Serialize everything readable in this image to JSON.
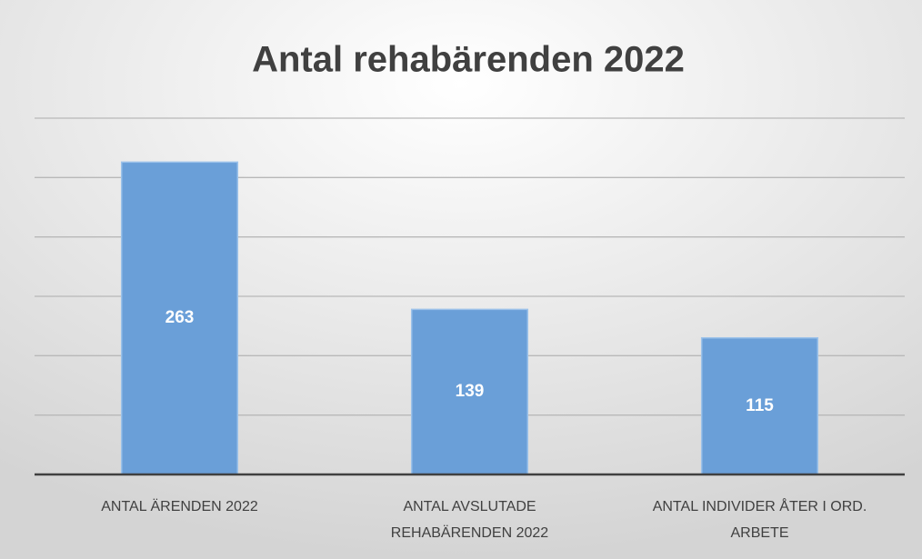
{
  "chart_data": {
    "type": "bar",
    "title": "Antal rehabärenden 2022",
    "categories": [
      "ANTAL ÄRENDEN 2022",
      "ANTAL AVSLUTADE REHABÄRENDEN 2022",
      "ANTAL INDIVIDER ÅTER I ORD. ARBETE"
    ],
    "values": [
      263,
      139,
      115
    ],
    "color": "#6a9fd8",
    "ylim": [
      0,
      300
    ],
    "yticks": [
      0,
      50,
      100,
      150,
      200,
      250,
      300
    ],
    "grid": true
  }
}
